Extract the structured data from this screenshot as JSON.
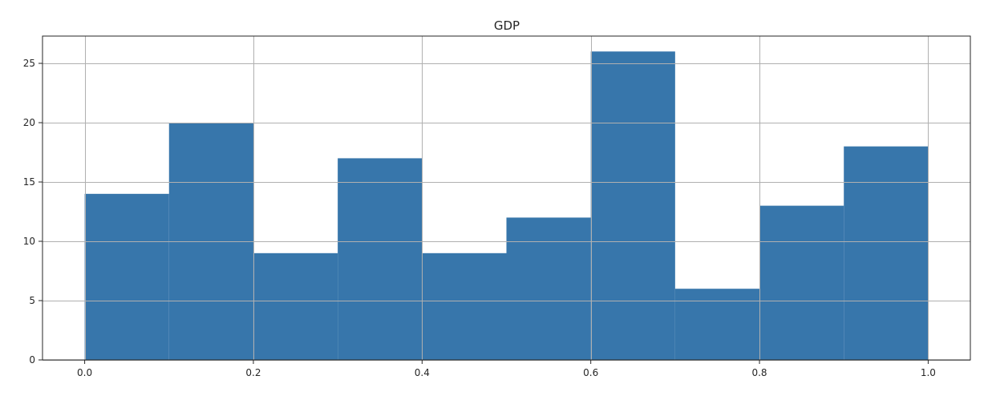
{
  "chart_data": {
    "type": "bar",
    "title": "GDP",
    "xlabel": "",
    "ylabel": "",
    "bin_edges": [
      0.0,
      0.1,
      0.2,
      0.3,
      0.4,
      0.5,
      0.6,
      0.7,
      0.8,
      0.9,
      1.0
    ],
    "values": [
      14,
      20,
      9,
      17,
      9,
      12,
      26,
      6,
      13,
      18
    ],
    "xlim": [
      -0.05,
      1.05
    ],
    "ylim": [
      0,
      27.3
    ],
    "x_ticks": [
      0.0,
      0.2,
      0.4,
      0.6,
      0.8,
      1.0
    ],
    "x_tick_labels": [
      "0.0",
      "0.2",
      "0.4",
      "0.6",
      "0.8",
      "1.0"
    ],
    "y_ticks": [
      0,
      5,
      10,
      15,
      20,
      25
    ],
    "y_tick_labels": [
      "0",
      "5",
      "10",
      "15",
      "20",
      "25"
    ],
    "grid": true,
    "legend": "none",
    "colors": {
      "bar": "#3776ab",
      "grid": "#b0b0b0",
      "axis": "#262626"
    }
  }
}
